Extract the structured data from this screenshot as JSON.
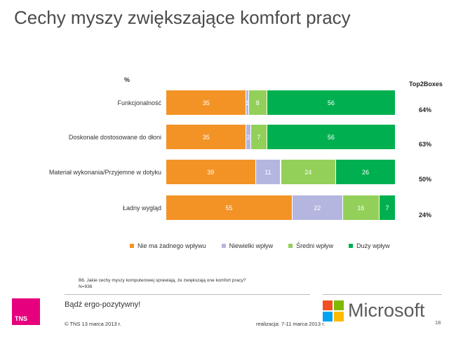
{
  "title": "Cechy myszy zwiększające komfort pracy",
  "percent_label": "%",
  "top2_header": "Top2Boxes",
  "chart_data": {
    "type": "bar",
    "orientation": "horizontal",
    "stacked": true,
    "categories": [
      "Funkcjonalność",
      "Doskonale dostosowane do dłoni",
      "Materiał wykonania/Przyjemne w dotyku",
      "Ładny wygląd"
    ],
    "series": [
      {
        "name": "Nie ma żadnego wpływu",
        "color": "#f39325",
        "values": [
          35,
          35,
          39,
          55
        ]
      },
      {
        "name": "Niewielki wpływ",
        "color": "#b4b6e0",
        "values": [
          1,
          2,
          11,
          22
        ]
      },
      {
        "name": "Średni wpływ",
        "color": "#93d05a",
        "values": [
          8,
          7,
          24,
          16
        ]
      },
      {
        "name": "Duży wpływ",
        "color": "#00b050",
        "values": [
          56,
          56,
          26,
          7
        ]
      }
    ],
    "top2boxes": [
      "64%",
      "63%",
      "50%",
      "24%"
    ],
    "xlim": [
      0,
      100
    ],
    "legend_position": "bottom"
  },
  "footnote": {
    "line1": "B6. Jakie cechy  myszy komputerowej sprawiają, że zwiększają one komfort pracy?",
    "line2": "N=936"
  },
  "footer": {
    "tns_logo": "TNS",
    "slogan": "Bądź ergo-pozytywny!",
    "copyright": "© TNS   13 marca 2013 r.",
    "realization": "realizacja: 7-11 marca 2013 r.",
    "page_number": "18",
    "ms_name": "Microsoft",
    "ms_colors": [
      "#f25022",
      "#7fba00",
      "#00a4ef",
      "#ffb900"
    ]
  }
}
